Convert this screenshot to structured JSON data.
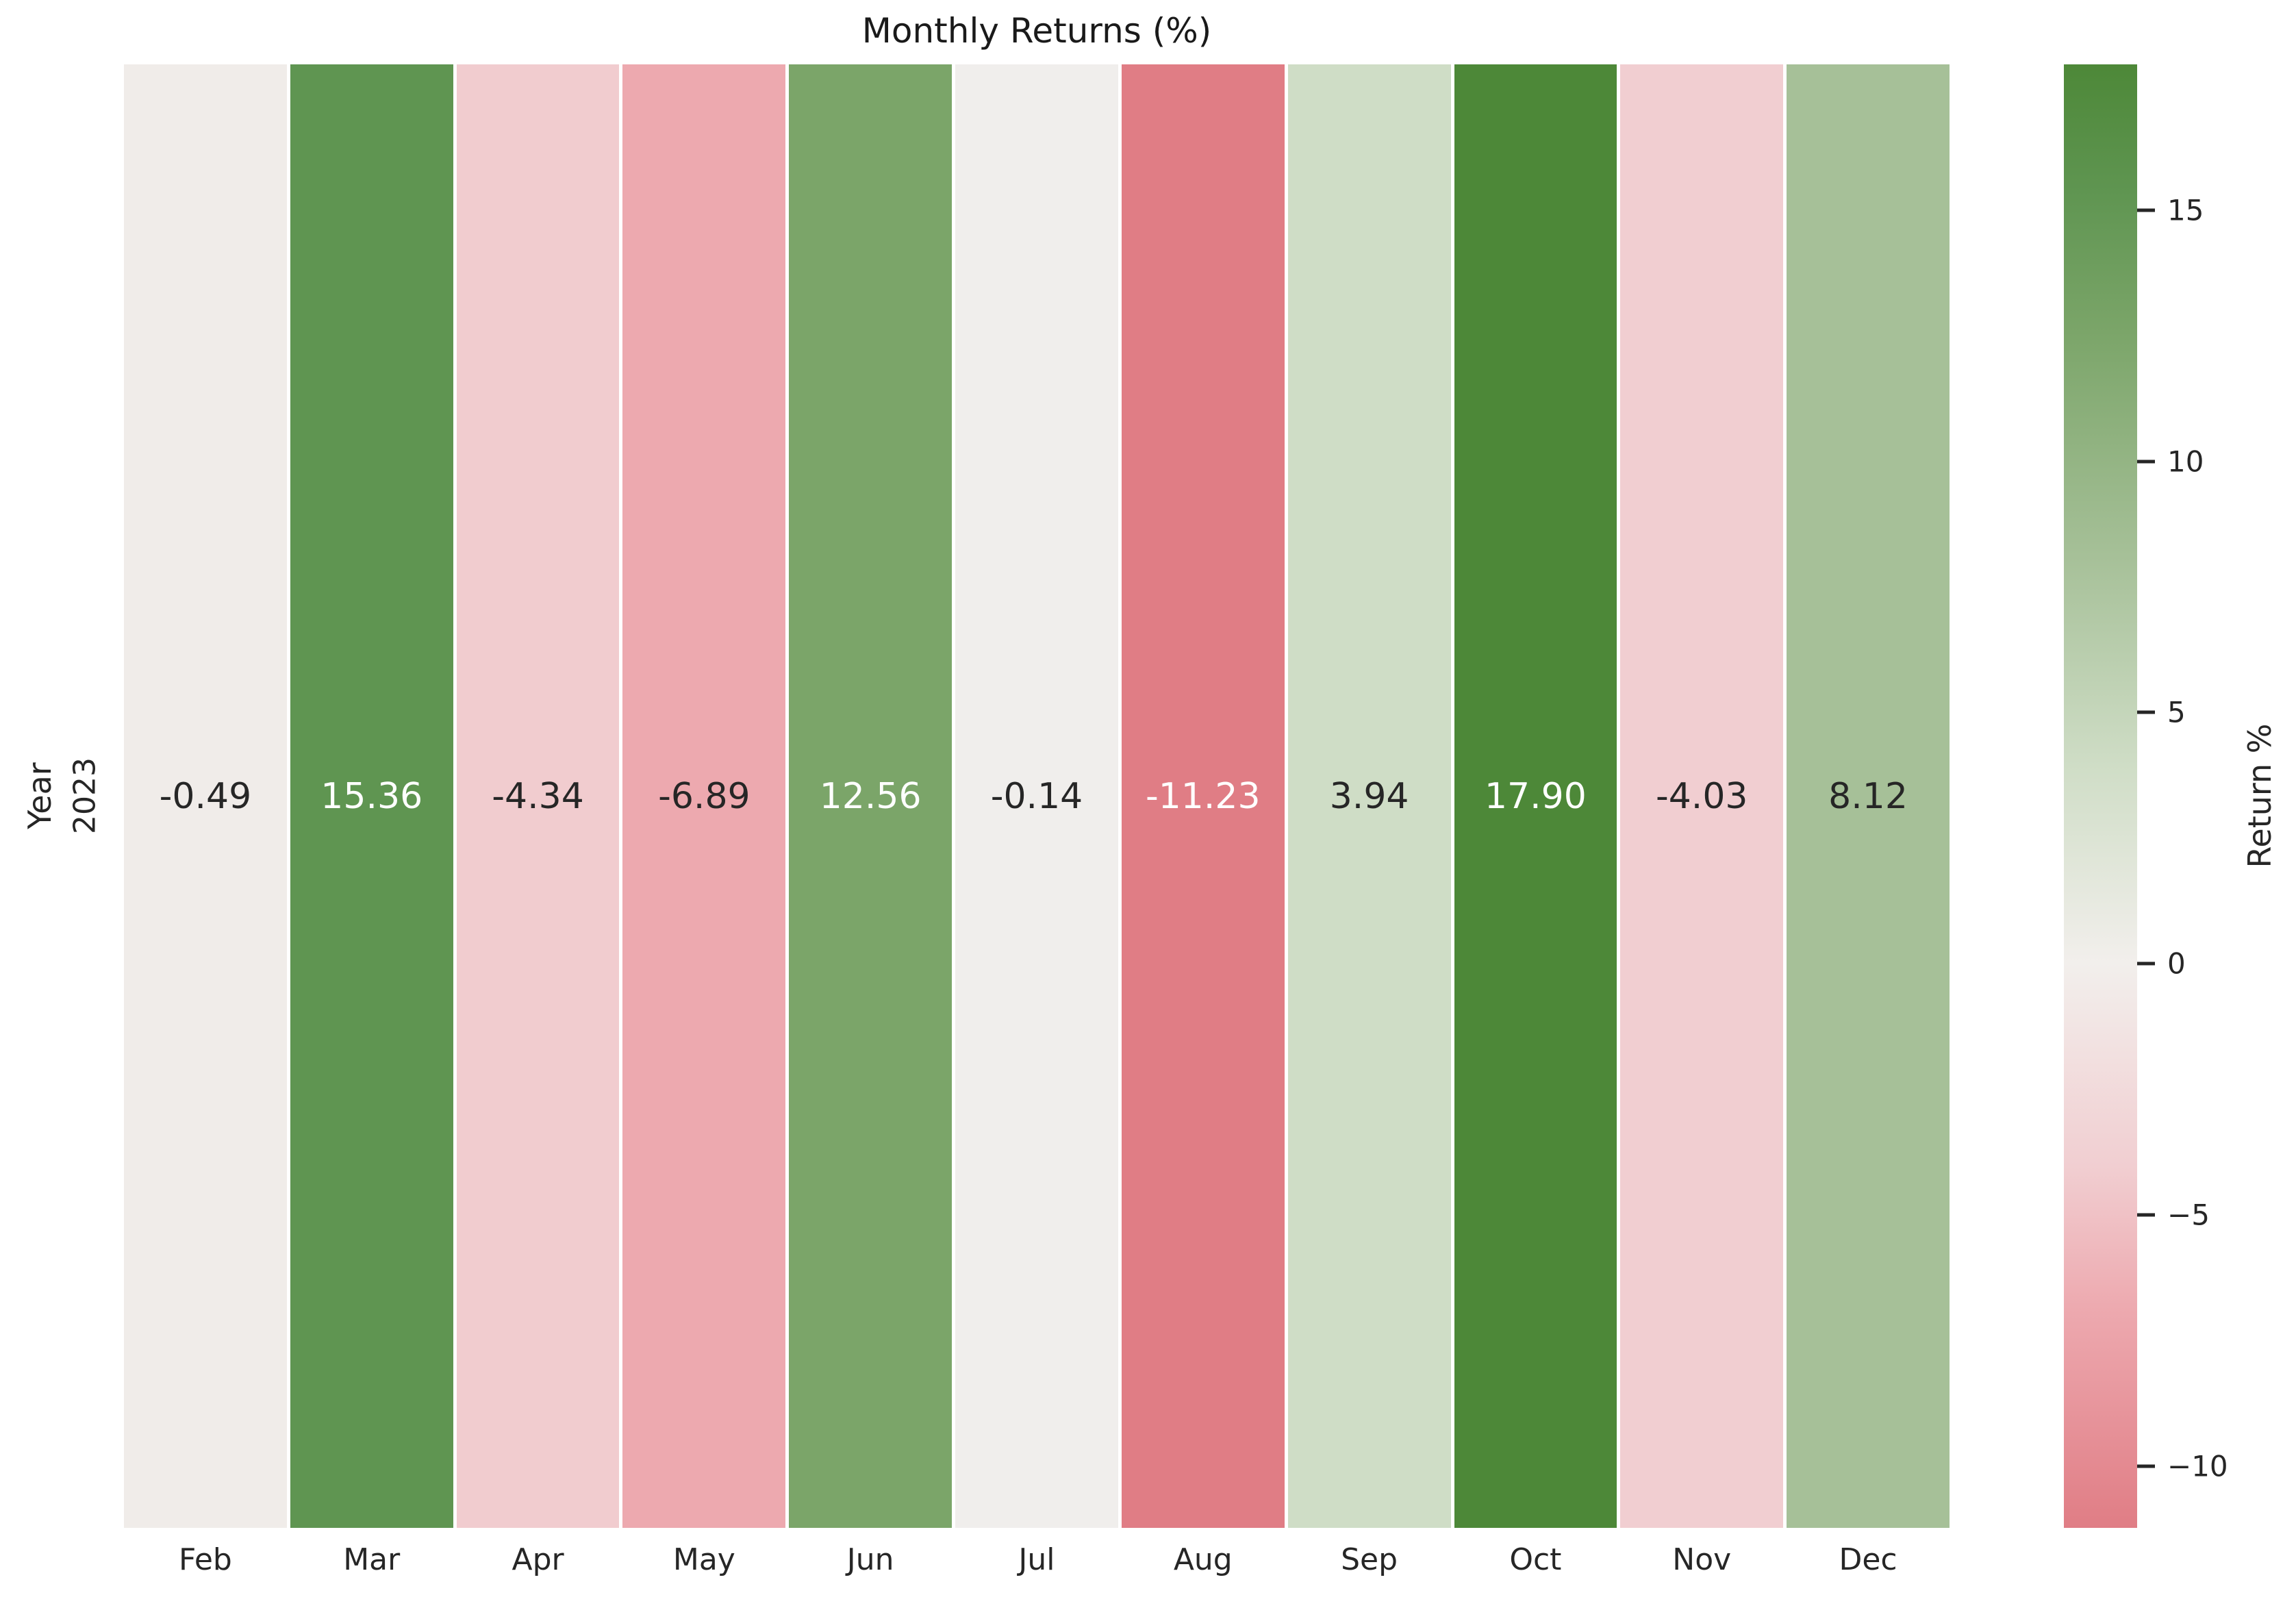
{
  "figure": {
    "background": "#ffffff",
    "text_color": "#262626"
  },
  "chart_data": {
    "type": "heatmap",
    "title": "Monthly Returns (%)",
    "xlabel": "",
    "ylabel": "Year",
    "legend_position": "right-colorbar",
    "grid": false,
    "rows": [
      "2023"
    ],
    "columns": [
      "Feb",
      "Mar",
      "Apr",
      "May",
      "Jun",
      "Jul",
      "Aug",
      "Sep",
      "Oct",
      "Nov",
      "Dec"
    ],
    "values": [
      [
        -0.49,
        15.36,
        -4.34,
        -6.89,
        12.56,
        -0.14,
        -11.23,
        3.94,
        17.9,
        -4.03,
        8.12
      ]
    ],
    "annotations": [
      [
        "-0.49",
        "15.36",
        "-4.34",
        "-6.89",
        "12.56",
        "-0.14",
        "-11.23",
        "3.94",
        "17.90",
        "-4.03",
        "8.12"
      ]
    ],
    "cell_colors": [
      [
        "#f0ece9",
        "#5f9551",
        "#f1cccf",
        "#eda9af",
        "#7ba569",
        "#f0eeec",
        "#e07d85",
        "#cfddc6",
        "#4d8838",
        "#f1ced1",
        "#a6c098"
      ]
    ],
    "annotation_text_colors": [
      [
        "#262626",
        "#ffffff",
        "#262626",
        "#262626",
        "#ffffff",
        "#262626",
        "#ffffff",
        "#262626",
        "#ffffff",
        "#262626",
        "#262626"
      ]
    ],
    "cell_gap_color": "#ffffff",
    "colorbar": {
      "label": "Return %",
      "vmin": -11.23,
      "vmax": 17.9,
      "tick_values": [
        15,
        10,
        5,
        0,
        -5,
        -10
      ],
      "tick_labels": [
        "15",
        "10",
        "5",
        "0",
        "−5",
        "−10"
      ],
      "gradient_stops": [
        {
          "pct": 0.0,
          "color": "#4d8838"
        },
        {
          "pct": 8.7,
          "color": "#5f9551"
        },
        {
          "pct": 18.3,
          "color": "#7ba569"
        },
        {
          "pct": 33.6,
          "color": "#a6c098"
        },
        {
          "pct": 47.9,
          "color": "#cfddc6"
        },
        {
          "pct": 61.4,
          "color": "#f2efec"
        },
        {
          "pct": 75.3,
          "color": "#f1ced1"
        },
        {
          "pct": 85.1,
          "color": "#eda9af"
        },
        {
          "pct": 100.0,
          "color": "#e07d85"
        }
      ]
    }
  }
}
